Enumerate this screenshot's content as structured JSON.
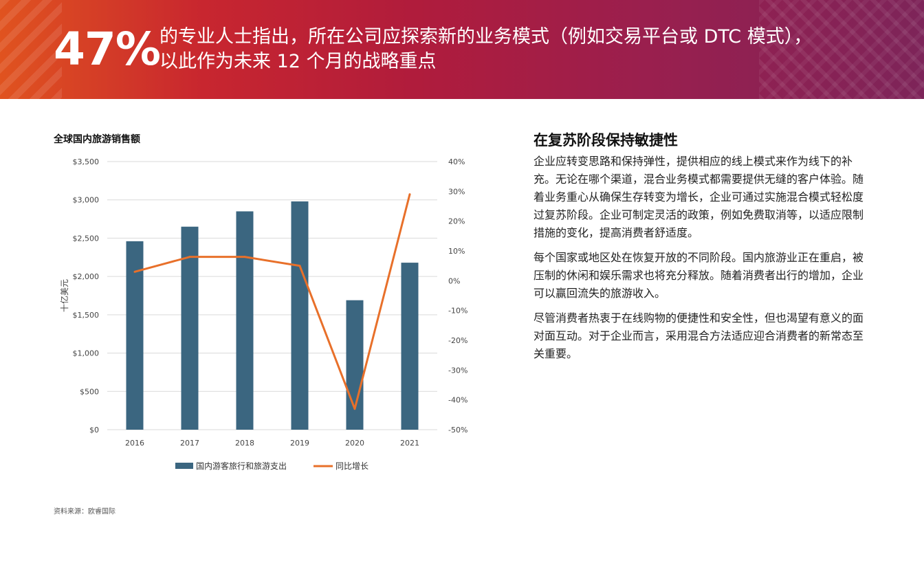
{
  "header": {
    "stat": "47%",
    "headline_line1": "的专业人士指出，所在公司应探索新的业务模式（例如交易平台或 DTC 模式），",
    "headline_line2": "以此作为未来 12 个月的战略重点"
  },
  "chart": {
    "title": "全球国内旅游销售额",
    "source": "资料来源：欧睿国际"
  },
  "chart_data": {
    "type": "bar",
    "title": "全球国内旅游销售额",
    "categories": [
      "2016",
      "2017",
      "2018",
      "2019",
      "2020",
      "2021"
    ],
    "series": [
      {
        "name": "国内游客旅行和旅游支出",
        "type": "bar",
        "axis": "left",
        "color": "#3b6680",
        "values": [
          2460,
          2650,
          2850,
          2980,
          1690,
          2180
        ]
      },
      {
        "name": "同比增长",
        "type": "line",
        "axis": "right",
        "color": "#e8702a",
        "values": [
          3,
          8,
          8,
          5,
          -43,
          29
        ]
      }
    ],
    "ylabel": "十亿美元",
    "y2label": "同比增长",
    "ylim": [
      0,
      3500
    ],
    "y2lim": [
      -50,
      40
    ],
    "yticks": [
      "$0",
      "$500",
      "$1,000",
      "$1,500",
      "$2,000",
      "$2,500",
      "$3,000",
      "$3,500"
    ],
    "y2ticks": [
      "-50%",
      "-40%",
      "-30%",
      "-20%",
      "-10%",
      "0%",
      "10%",
      "20%",
      "30%",
      "40%"
    ],
    "grid": true,
    "legend_position": "bottom"
  },
  "article": {
    "heading": "在复苏阶段保持敏捷性",
    "paragraphs": [
      "企业应转变思路和保持弹性，提供相应的线上模式来作为线下的补充。无论在哪个渠道，混合业务模式都需要提供无缝的客户体验。随着业务重心从确保生存转变为增长，企业可通过实施混合模式轻松度过复苏阶段。企业可制定灵活的政策，例如免费取消等，以适应限制措施的变化，提高消费者舒适度。",
      "每个国家或地区处在恢复开放的不同阶段。国内旅游业正在重启，被压制的休闲和娱乐需求也将充分释放。随着消费者出行的增加，企业可以赢回流失的旅游收入。",
      "尽管消费者热衷于在线购物的便捷性和安全性，但也渴望有意义的面对面互动。对于企业而言，采用混合方法适应迎合消费者的新常态至关重要。"
    ]
  }
}
